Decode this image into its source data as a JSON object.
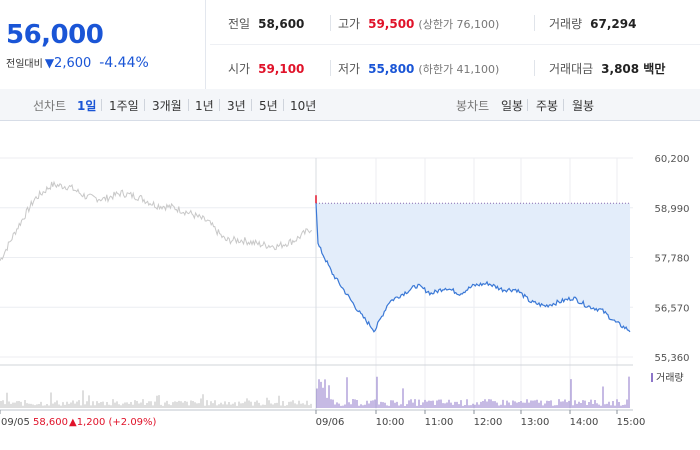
{
  "summary": {
    "price": "56,000",
    "change_label": "전일대비",
    "change_icon": "down-triangle-icon",
    "change_value": "2,600",
    "change_pct": "-4.44%"
  },
  "stats": {
    "prev_close_label": "전일",
    "prev_close": "58,600",
    "high_label": "고가",
    "high": "59,500",
    "upper_limit": "(상한가 76,100)",
    "volume_label": "거래량",
    "volume": "67,294",
    "open_label": "시가",
    "open": "59,100",
    "low_label": "저가",
    "low": "55,800",
    "lower_limit": "(하한가 41,100)",
    "amount_label": "거래대금",
    "amount": "3,808 백만"
  },
  "tabs": {
    "line_label": "선차트",
    "line_items": [
      "1일",
      "1주일",
      "3개월",
      "1년",
      "3년",
      "5년",
      "10년"
    ],
    "line_active": "1일",
    "candle_label": "봉차트",
    "candle_items": [
      "일봉",
      "주봉",
      "월봉"
    ]
  },
  "colors": {
    "accent": "#1a55d6",
    "up": "#e0132a",
    "down": "#1a55d6",
    "today_line": "#3a78d6",
    "prev_line": "#c8c8c8",
    "fill": "#e3edfa",
    "volume_today": "#8d76c9",
    "volume_prev": "#bcbcbc"
  },
  "chart_data": {
    "type": "line",
    "y_ticks": [
      "60,200",
      "58,990",
      "57,780",
      "56,570",
      "55,360"
    ],
    "ylim": [
      55360,
      60200
    ],
    "reference_price": 58600,
    "x_ticks": [
      "09/05",
      "09/06",
      "10:00",
      "11:00",
      "12:00",
      "13:00",
      "14:00",
      "15:00"
    ],
    "prev_day_footer": "58,600",
    "prev_day_change": "▲1,200 (+2.09%)",
    "volume_legend": "거래량",
    "grid": true,
    "series": [
      {
        "x": [
          "09/05 09:00",
          "09:20",
          "09:40",
          "10:00",
          "10:20",
          "10:40",
          "11:00",
          "11:20",
          "11:40",
          "12:00",
          "12:30",
          "13:00",
          "13:20",
          "13:40",
          "14:00",
          "14:20",
          "14:40",
          "15:00",
          "15:20"
        ],
        "values": [
          57700,
          58500,
          59200,
          59550,
          59500,
          59250,
          59200,
          59350,
          59250,
          59050,
          59000,
          58850,
          58650,
          58200,
          58200,
          58100,
          58050,
          58200,
          58500
        ]
      },
      {
        "x": [
          "09/06 09:00",
          "09:03",
          "09:06",
          "09:10",
          "09:20",
          "09:30",
          "09:40",
          "10:00",
          "10:20",
          "10:40",
          "11:00",
          "11:20",
          "11:40",
          "12:00",
          "12:20",
          "12:40",
          "13:00",
          "13:20",
          "13:40",
          "14:00",
          "14:20",
          "14:40",
          "15:00",
          "15:20"
        ],
        "values": [
          59100,
          58100,
          57400,
          56900,
          56400,
          56000,
          56700,
          56900,
          57100,
          56900,
          57050,
          56900,
          57100,
          57150,
          57000,
          57000,
          56700,
          56600,
          56700,
          56800,
          56600,
          56500,
          56200,
          56000
        ]
      }
    ]
  }
}
